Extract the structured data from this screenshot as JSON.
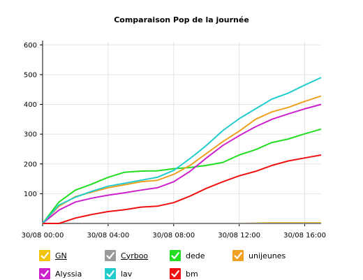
{
  "chart_data": {
    "type": "line",
    "title": "Comparaison Pop de la journée",
    "xlabel": "",
    "ylabel": "",
    "ylim": [
      0,
      610
    ],
    "yticks": [
      100,
      200,
      300,
      400,
      500,
      600
    ],
    "x_tick_labels": [
      "30/08 00:00",
      "30/08 04:00",
      "30/08 08:00",
      "30/08 12:00",
      "30/08 16:00"
    ],
    "x_tick_hours": [
      0,
      4,
      8,
      12,
      16
    ],
    "xlim_hours": [
      0,
      17
    ],
    "x_hours": [
      0,
      1,
      2,
      3,
      4,
      5,
      6,
      7,
      8,
      9,
      10,
      11,
      12,
      13,
      14,
      15,
      16,
      17
    ],
    "grid": true,
    "legend_position": "bottom",
    "series": [
      {
        "name": "GN",
        "color": "#e8b000",
        "checkbox_color": "#f2c40c",
        "underlined": true,
        "values": [
          0,
          0,
          0,
          0,
          0,
          0,
          0,
          0,
          0,
          0,
          0,
          0,
          0,
          1,
          2,
          2,
          2,
          2
        ]
      },
      {
        "name": "Cyrboo",
        "color": "#888888",
        "checkbox_color": "#9a9a9a",
        "underlined": true,
        "values": [
          0,
          0,
          0,
          0,
          0,
          0,
          0,
          0,
          0,
          0,
          0,
          0,
          0,
          0,
          0,
          0,
          0,
          0
        ]
      },
      {
        "name": "dede",
        "color": "#22dd22",
        "checkbox_color": "#22dd22",
        "underlined": false,
        "values": [
          0,
          72,
          112,
          132,
          155,
          172,
          176,
          177,
          184,
          188,
          195,
          205,
          230,
          248,
          272,
          284,
          301,
          317
        ]
      },
      {
        "name": "unijeunes",
        "color": "#f0a020",
        "checkbox_color": "#f0a020",
        "underlined": false,
        "values": [
          0,
          58,
          90,
          105,
          120,
          130,
          140,
          145,
          165,
          195,
          235,
          275,
          310,
          350,
          375,
          390,
          410,
          428
        ]
      },
      {
        "name": "Alyssia",
        "color": "#cc22cc",
        "checkbox_color": "#cc22cc",
        "underlined": false,
        "values": [
          0,
          45,
          72,
          85,
          95,
          103,
          112,
          120,
          140,
          175,
          220,
          262,
          295,
          325,
          350,
          368,
          385,
          400
        ]
      },
      {
        "name": "lav",
        "color": "#22cccc",
        "checkbox_color": "#22cccc",
        "underlined": false,
        "values": [
          0,
          62,
          88,
          108,
          125,
          135,
          145,
          155,
          178,
          218,
          262,
          312,
          352,
          385,
          418,
          438,
          465,
          490
        ]
      },
      {
        "name": "bm",
        "color": "#ee1111",
        "checkbox_color": "#ee1111",
        "underlined": false,
        "values": [
          0,
          0,
          18,
          30,
          40,
          46,
          55,
          58,
          70,
          92,
          118,
          140,
          160,
          175,
          195,
          210,
          220,
          230
        ]
      }
    ]
  }
}
